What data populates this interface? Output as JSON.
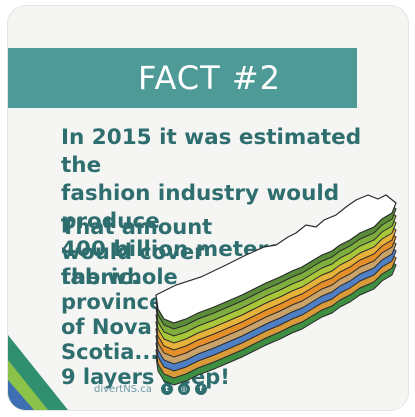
{
  "fact": {
    "title": "FACT #2",
    "headline_lines": [
      "In 2015 it was estimated the",
      "fashion industry would produce",
      "400 billion meters of fabric."
    ],
    "comparison_lines": [
      "That amount would cover",
      "the whole province",
      "of Nova Scotia...",
      "9 layers deep!"
    ]
  },
  "map": {
    "layers": 9,
    "layer_colors": [
      "#5b8c3a",
      "#7fae3f",
      "#a8c83a",
      "#e7b23a",
      "#e58f2b",
      "#c9a36a",
      "#4f7fc4",
      "#d99a3a",
      "#3f8f43"
    ]
  },
  "footer": {
    "site": "divertNS.ca",
    "social_icons": [
      "twitter-icon",
      "instagram-icon",
      "facebook-icon"
    ]
  },
  "colors": {
    "banner": "#4e9a97",
    "text": "#2f6e6e",
    "background": "#f5f5f4"
  }
}
